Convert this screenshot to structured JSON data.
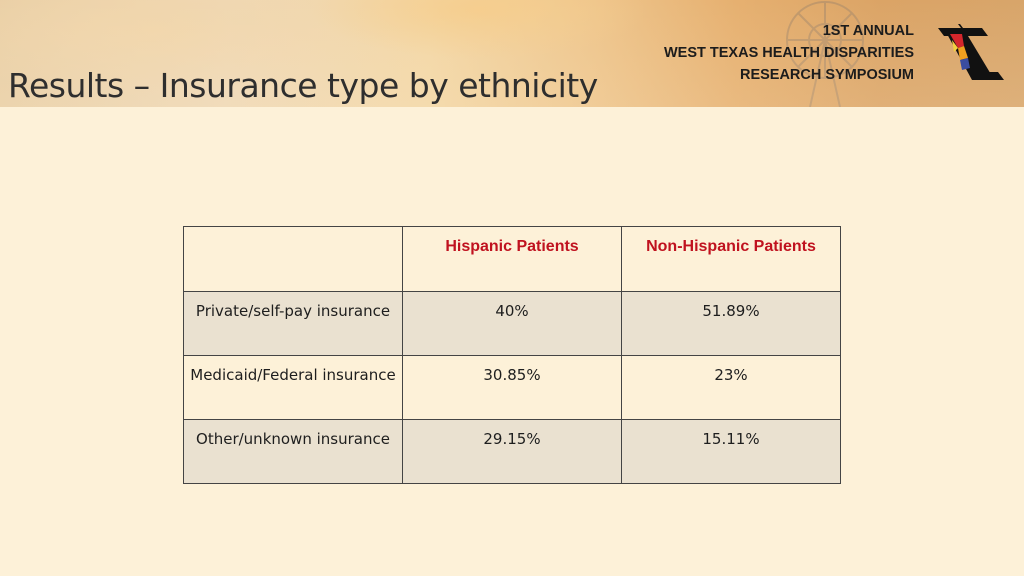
{
  "page": {
    "title": "Results – Insurance type by ethnicity"
  },
  "header": {
    "symposium_lines": [
      "1ST ANNUAL",
      "WEST TEXAS HEALTH DISPARITIES",
      "RESEARCH SYMPOSIUM"
    ],
    "logo_icon": "double-t-logo-icon",
    "background_icon": "windmill-sunset-icon"
  },
  "table": {
    "columns": [
      "",
      "Hispanic Patients",
      "Non-Hispanic Patients"
    ],
    "rows": [
      {
        "label": "Private/self-pay insurance",
        "hispanic": "40%",
        "non_hispanic": "51.89%"
      },
      {
        "label": "Medicaid/Federal insurance",
        "hispanic": "30.85%",
        "non_hispanic": "23%"
      },
      {
        "label": "Other/unknown insurance",
        "hispanic": "29.15%",
        "non_hispanic": "15.11%"
      }
    ]
  },
  "colors": {
    "header_text": "#c0121f",
    "background": "#fdf1d8",
    "shaded_row": "#eae1d0"
  }
}
